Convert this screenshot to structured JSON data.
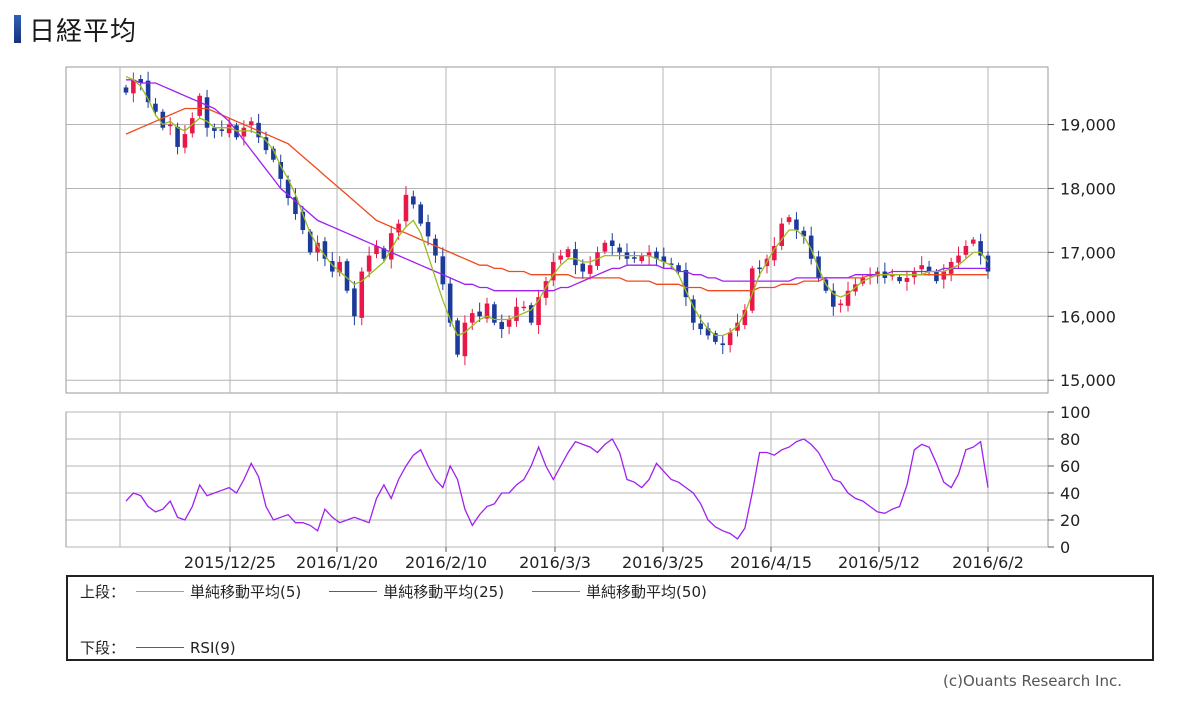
{
  "title": "日経平均",
  "copyright": "(c)Ouants Research Inc.",
  "legend": {
    "upper_prefix": "上段：",
    "lower_prefix": "下段：",
    "upper_items": [
      {
        "label": "単純移動平均(5)",
        "color": "#9bbb1e"
      },
      {
        "label": "単純移動平均(25)",
        "color": "#a020f0"
      },
      {
        "label": "単純移動平均(50)",
        "color": "#f04a1e"
      }
    ],
    "lower_items": [
      {
        "label": "RSI(9)",
        "color": "#a020f0"
      }
    ]
  },
  "chart_data": [
    {
      "type": "candlestick",
      "ylim": [
        14800,
        19900
      ],
      "yticks": [
        15000,
        16000,
        17000,
        18000,
        19000
      ],
      "ytick_labels": [
        "15,000",
        "16,000",
        "17,000",
        "18,000",
        "19,000"
      ],
      "xtick_labels": [
        "2015/12/25",
        "2016/1/20",
        "2016/2/10",
        "2016/3/3",
        "2016/3/25",
        "2016/4/15",
        "2016/5/12",
        "2016/6/2"
      ],
      "grid": true,
      "up_color": "#e8194a",
      "down_color": "#1c3a9a",
      "closes": [
        19500,
        19700,
        19650,
        19350,
        19200,
        18950,
        19000,
        18650,
        18850,
        19100,
        19450,
        18950,
        18900,
        18900,
        19000,
        18800,
        18950,
        19050,
        18800,
        18600,
        18450,
        18150,
        17850,
        17600,
        17350,
        17000,
        17150,
        16900,
        16700,
        16850,
        16400,
        16000,
        16700,
        16950,
        17100,
        16900,
        17300,
        17450,
        17900,
        17750,
        17450,
        17250,
        16950,
        16500,
        15900,
        15400,
        15900,
        16050,
        16000,
        16200,
        15900,
        15800,
        15950,
        16150,
        16150,
        15900,
        16300,
        16550,
        16850,
        16950,
        17050,
        16800,
        16700,
        16800,
        17000,
        17150,
        17100,
        17000,
        16900,
        16900,
        16950,
        17000,
        16900,
        16850,
        16800,
        16700,
        16300,
        15900,
        15800,
        15700,
        15600,
        15550,
        15750,
        15900,
        16100,
        16750,
        16750,
        16900,
        17100,
        17450,
        17550,
        17350,
        17250,
        16900,
        16600,
        16400,
        16150,
        16200,
        16400,
        16500,
        16600,
        16650,
        16700,
        16600,
        16650,
        16550,
        16600,
        16700,
        16800,
        16700,
        16550,
        16700,
        16850,
        16950,
        17100,
        17200,
        16950,
        16700
      ],
      "ma5": [
        19750,
        19700,
        19600,
        19400,
        19150,
        19000,
        19050,
        18950,
        18900,
        19000,
        19100,
        19050,
        18950,
        18950,
        18950,
        18900,
        18900,
        18900,
        18850,
        18750,
        18600,
        18350,
        18150,
        17900,
        17600,
        17300,
        17100,
        16950,
        16800,
        16700,
        16600,
        16500,
        16550,
        16650,
        16750,
        16850,
        17050,
        17250,
        17400,
        17500,
        17300,
        16950,
        16600,
        16250,
        15950,
        15700,
        15750,
        15850,
        15950,
        16000,
        15950,
        15950,
        15950,
        16000,
        16050,
        16100,
        16250,
        16450,
        16650,
        16800,
        16900,
        16900,
        16850,
        16850,
        16900,
        16950,
        16950,
        16950,
        16950,
        16950,
        16950,
        16950,
        16900,
        16850,
        16800,
        16650,
        16400,
        16150,
        15950,
        15800,
        15700,
        15700,
        15750,
        15850,
        16050,
        16350,
        16650,
        16850,
        17050,
        17200,
        17350,
        17350,
        17250,
        17050,
        16750,
        16500,
        16350,
        16300,
        16350,
        16450,
        16550,
        16600,
        16650,
        16650,
        16650,
        16650,
        16650,
        16650,
        16650,
        16700,
        16700,
        16700,
        16750,
        16800,
        16900,
        17000,
        17000,
        16850
      ],
      "ma25": [
        19700,
        19700,
        19650,
        19650,
        19650,
        19600,
        19550,
        19500,
        19450,
        19400,
        19350,
        19300,
        19250,
        19150,
        19050,
        18900,
        18750,
        18600,
        18450,
        18300,
        18150,
        18000,
        17900,
        17800,
        17700,
        17600,
        17500,
        17450,
        17400,
        17350,
        17300,
        17250,
        17200,
        17150,
        17100,
        17050,
        17000,
        16950,
        16900,
        16850,
        16800,
        16750,
        16700,
        16650,
        16600,
        16550,
        16500,
        16500,
        16450,
        16450,
        16400,
        16400,
        16400,
        16400,
        16400,
        16400,
        16400,
        16400,
        16400,
        16450,
        16450,
        16500,
        16550,
        16600,
        16650,
        16700,
        16750,
        16750,
        16800,
        16800,
        16800,
        16800,
        16800,
        16750,
        16750,
        16700,
        16700,
        16650,
        16650,
        16600,
        16600,
        16550,
        16550,
        16550,
        16550,
        16550,
        16550,
        16550,
        16550,
        16550,
        16550,
        16600,
        16600,
        16600,
        16600,
        16600,
        16600,
        16600,
        16600,
        16650,
        16650,
        16650,
        16650,
        16650,
        16700,
        16700,
        16700,
        16700,
        16700,
        16700,
        16700,
        16750,
        16750,
        16750,
        16750,
        16750,
        16750,
        16750
      ],
      "ma50": [
        18850,
        18900,
        18950,
        19000,
        19050,
        19100,
        19150,
        19200,
        19250,
        19250,
        19250,
        19250,
        19200,
        19150,
        19100,
        19050,
        19000,
        18950,
        18900,
        18850,
        18800,
        18750,
        18700,
        18600,
        18500,
        18400,
        18300,
        18200,
        18100,
        18000,
        17900,
        17800,
        17700,
        17600,
        17500,
        17450,
        17400,
        17350,
        17300,
        17250,
        17200,
        17150,
        17100,
        17050,
        17000,
        16950,
        16900,
        16850,
        16800,
        16800,
        16750,
        16750,
        16700,
        16700,
        16700,
        16650,
        16650,
        16650,
        16650,
        16650,
        16650,
        16600,
        16600,
        16600,
        16600,
        16600,
        16600,
        16600,
        16550,
        16550,
        16550,
        16550,
        16500,
        16500,
        16500,
        16500,
        16450,
        16450,
        16450,
        16400,
        16400,
        16400,
        16400,
        16400,
        16400,
        16400,
        16450,
        16450,
        16450,
        16500,
        16500,
        16500,
        16550,
        16550,
        16550,
        16600,
        16600,
        16600,
        16600,
        16600,
        16600,
        16650,
        16650,
        16650,
        16650,
        16650,
        16650,
        16650,
        16650,
        16650,
        16650,
        16650,
        16650,
        16650,
        16650,
        16650,
        16650,
        16650
      ]
    },
    {
      "type": "line",
      "ylim": [
        0,
        100
      ],
      "yticks": [
        0,
        20,
        40,
        60,
        80,
        100
      ],
      "ytick_labels": [
        "0",
        "20",
        "40",
        "60",
        "80",
        "100"
      ],
      "grid": true,
      "series": [
        {
          "name": "RSI(9)",
          "color": "#a020f0",
          "values": [
            34,
            40,
            38,
            30,
            26,
            28,
            34,
            22,
            20,
            30,
            46,
            38,
            40,
            42,
            44,
            40,
            50,
            62,
            52,
            30,
            20,
            22,
            24,
            18,
            18,
            16,
            12,
            28,
            22,
            18,
            20,
            22,
            20,
            18,
            36,
            46,
            36,
            50,
            60,
            68,
            72,
            60,
            50,
            44,
            60,
            50,
            28,
            16,
            24,
            30,
            32,
            40,
            40,
            46,
            50,
            60,
            74,
            60,
            50,
            60,
            70,
            78,
            76,
            74,
            70,
            76,
            80,
            70,
            50,
            48,
            44,
            50,
            62,
            56,
            50,
            48,
            44,
            40,
            32,
            20,
            15,
            12,
            10,
            6,
            14,
            40,
            70,
            70,
            68,
            72,
            74,
            78,
            80,
            76,
            70,
            60,
            50,
            48,
            40,
            36,
            34,
            30,
            26,
            25,
            28,
            30,
            46,
            72,
            76,
            74,
            62,
            48,
            44,
            54,
            72,
            74,
            78,
            44
          ]
        }
      ]
    }
  ]
}
